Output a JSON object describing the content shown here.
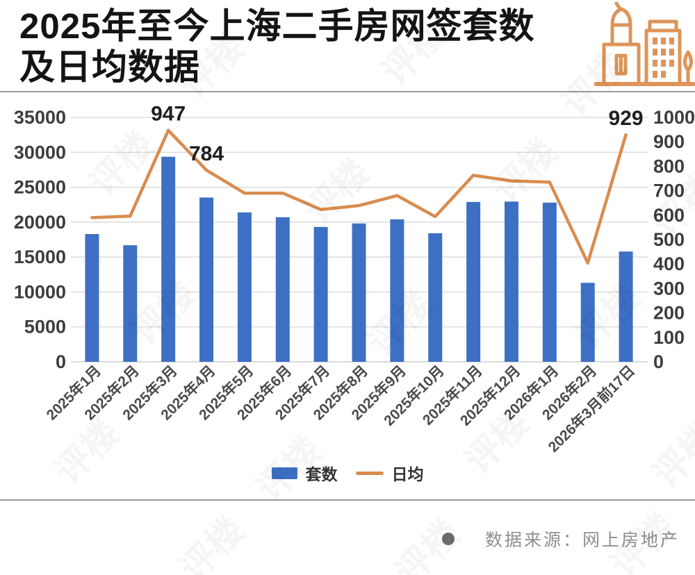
{
  "header": {
    "title_line1": "2025年至今上海二手房网签套数",
    "title_line2": "及日均数据",
    "icon": "buildings-icon",
    "icon_color": "#DE9458"
  },
  "chart_data": {
    "type": "bar",
    "title": "2025年至今上海二手房网签套数及日均数据",
    "categories": [
      "2025年1月",
      "2025年2月",
      "2025年3月",
      "2025年4月",
      "2025年5月",
      "2025年6月",
      "2025年7月",
      "2025年8月",
      "2025年9月",
      "2025年10月",
      "2025年11月",
      "2025年12月",
      "2026年1月",
      "2026年2月",
      "2026年3月前17日"
    ],
    "series": [
      {
        "name": "套数",
        "type": "bar",
        "axis": "left",
        "color": "#3D6FC4",
        "values": [
          18290,
          16690,
          29360,
          23520,
          21390,
          20700,
          19310,
          19810,
          20400,
          18410,
          22890,
          22940,
          22790,
          11310,
          15790
        ]
      },
      {
        "name": "日均",
        "type": "line",
        "axis": "right",
        "color": "#D98C4E",
        "values": [
          590,
          596,
          947,
          784,
          690,
          690,
          623,
          639,
          680,
          594,
          763,
          740,
          735,
          404,
          929
        ]
      }
    ],
    "left_axis": {
      "min": 0,
      "max": 35000,
      "step": 5000,
      "ticks": [
        "0",
        "5000",
        "10000",
        "15000",
        "20000",
        "25000",
        "30000",
        "35000"
      ]
    },
    "right_axis": {
      "min": 0,
      "max": 1000,
      "step": 100,
      "ticks": [
        "0",
        "100",
        "200",
        "300",
        "400",
        "500",
        "600",
        "700",
        "800",
        "900",
        "1000"
      ]
    },
    "annotations": [
      {
        "series": "日均",
        "index": 2,
        "text": "947"
      },
      {
        "series": "日均",
        "index": 3,
        "text": "784"
      },
      {
        "series": "日均",
        "index": 14,
        "text": "929"
      }
    ],
    "grid": "horizontal",
    "legend_position": "bottom",
    "x_label_rotation": -45
  },
  "legend": {
    "items": [
      {
        "label": "套数",
        "color": "#3D6FC4",
        "marker": "square"
      },
      {
        "label": "日均",
        "color": "#D98C4E",
        "marker": "line"
      }
    ]
  },
  "footer": {
    "bullet": "dot-icon",
    "source_label": "数据来源：网上房地产"
  },
  "watermark": {
    "text": "评楼"
  }
}
